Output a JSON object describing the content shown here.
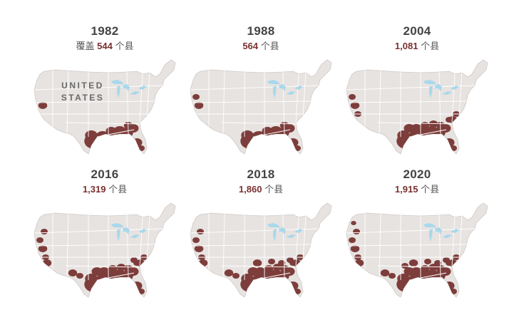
{
  "colors": {
    "land": "#e7e3e1",
    "border": "#ffffff",
    "highlight": "#7d3d3b",
    "lakes": "#a9d8ec",
    "text": "#444444"
  },
  "panels": [
    {
      "year": "1982",
      "prefix": "覆盖 ",
      "count": "544",
      "suffix": " 个县",
      "label": [
        "UNITED",
        "STATES"
      ],
      "coverage": 0.25
    },
    {
      "year": "1988",
      "prefix": "",
      "count": "564",
      "suffix": " 个县",
      "label": [],
      "coverage": 0.27
    },
    {
      "year": "2004",
      "prefix": "",
      "count": "1,081",
      "suffix": " 个县",
      "label": [],
      "coverage": 0.45
    },
    {
      "year": "2016",
      "prefix": "",
      "count": "1,319",
      "suffix": " 个县",
      "label": [],
      "coverage": 0.55
    },
    {
      "year": "2018",
      "prefix": "",
      "count": "1,860",
      "suffix": " 个县",
      "label": [],
      "coverage": 0.62
    },
    {
      "year": "2020",
      "prefix": "",
      "count": "1,915",
      "suffix": " 个县",
      "label": [],
      "coverage": 0.64
    }
  ]
}
